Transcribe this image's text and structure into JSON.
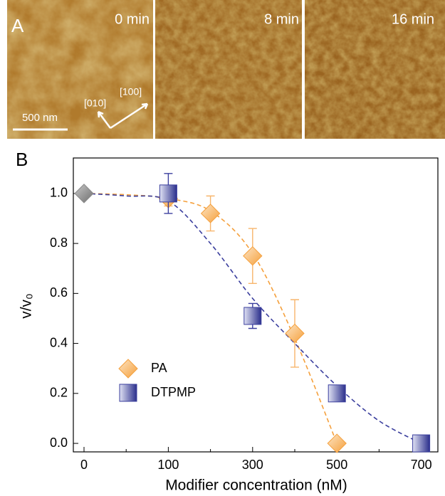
{
  "panel_a": {
    "label": "A",
    "times": [
      "0 min",
      "8 min",
      "16 min"
    ],
    "scale_bar": "500 nm",
    "directions": [
      "[010]",
      "[100]"
    ]
  },
  "chart_data": {
    "type": "scatter",
    "panel_label": "B",
    "x_label": "Modifier concentration (nM)",
    "y_label": "v/v₀",
    "categories": [
      "0",
      null,
      "100",
      null,
      "300",
      null,
      "500",
      null,
      "700"
    ],
    "ylim": [
      -0.034,
      1.142
    ],
    "yticks": [
      {
        "value": 0,
        "label": "0.0"
      },
      {
        "value": 0.2,
        "label": "0.2"
      },
      {
        "value": 0.4,
        "label": "0.4"
      },
      {
        "value": 0.6,
        "label": "0.6"
      },
      {
        "value": 0.8,
        "label": "0.8"
      },
      {
        "value": 1,
        "label": "1.0"
      }
    ],
    "legend": "lower left",
    "series": [
      {
        "name": "PA",
        "color": "#f5a03c",
        "marker": "diamond",
        "values": [
          null,
          null,
          0.98,
          0.92,
          0.75,
          0.44,
          0.0,
          null,
          null
        ],
        "errors": [
          null,
          null,
          0.03,
          0.07,
          0.11,
          0.135,
          null,
          null,
          null
        ],
        "fit_values": [
          1.0,
          0.995,
          0.98,
          0.93,
          0.76,
          0.42,
          0.0,
          null,
          null
        ]
      },
      {
        "name": "DTPMP",
        "color": "#3b3f9e",
        "marker": "square",
        "values": [
          null,
          null,
          1.0,
          null,
          0.51,
          null,
          0.2,
          null,
          0.0
        ],
        "errors": [
          null,
          null,
          0.08,
          null,
          0.05,
          null,
          null,
          null,
          null
        ],
        "fit_values": [
          1.0,
          0.99,
          0.97,
          0.8,
          0.58,
          0.4,
          0.23,
          0.09,
          0.0
        ]
      },
      {
        "color": "#8a8a8a",
        "marker": "diamond",
        "values": [
          1.0,
          null,
          null,
          null,
          null,
          null,
          null,
          null,
          null
        ]
      }
    ]
  }
}
